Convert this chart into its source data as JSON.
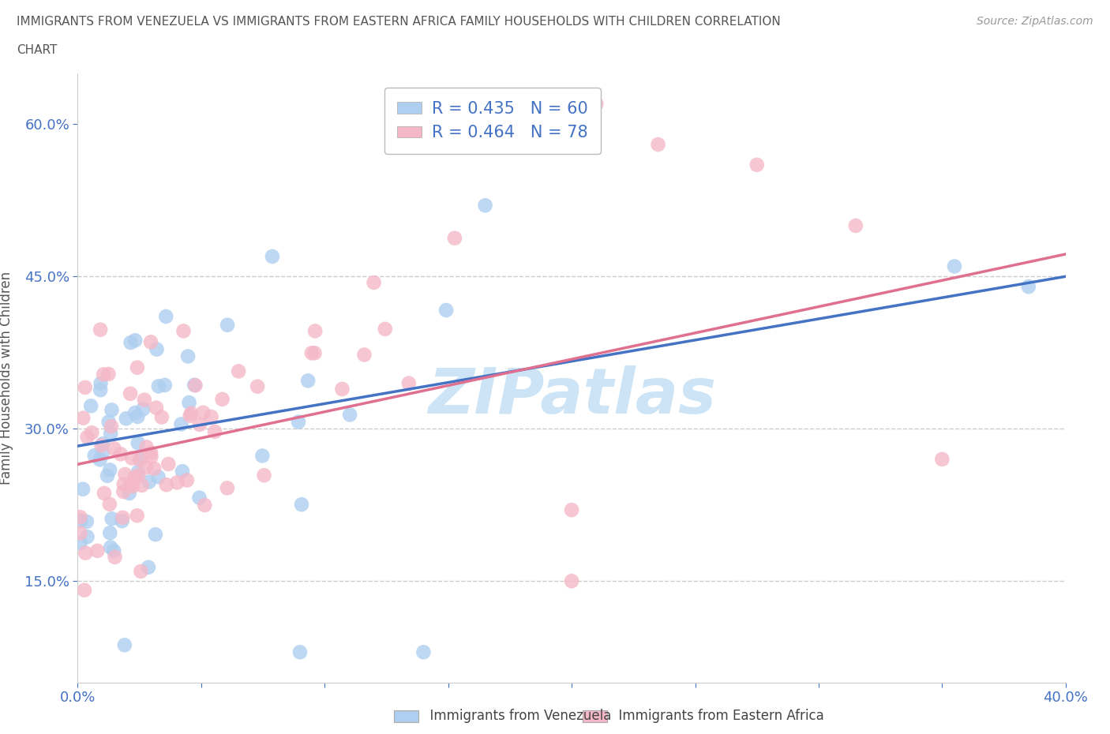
{
  "title_line1": "IMMIGRANTS FROM VENEZUELA VS IMMIGRANTS FROM EASTERN AFRICA FAMILY HOUSEHOLDS WITH CHILDREN CORRELATION",
  "title_line2": "CHART",
  "source": "Source: ZipAtlas.com",
  "ylabel": "Family Households with Children",
  "R1": 0.435,
  "N1": 60,
  "R2": 0.464,
  "N2": 78,
  "color1": "#aecff0",
  "color2": "#f5b8c8",
  "trendline1_color": "#4472c4",
  "trendline2_color": "#e07090",
  "watermark_color": "#cce4f5",
  "xlim": [
    0.0,
    0.4
  ],
  "ylim": [
    0.05,
    0.65
  ],
  "x_ticks": [
    0.0,
    0.05,
    0.1,
    0.15,
    0.2,
    0.25,
    0.3,
    0.35,
    0.4
  ],
  "y_ticks": [
    0.15,
    0.3,
    0.45,
    0.6
  ],
  "hline_y": 0.45,
  "hline2_y": 0.3,
  "hline3_y": 0.15,
  "background_color": "#ffffff",
  "title_color": "#555555",
  "source_color": "#999999",
  "axis_label_color": "#555555",
  "tick_color": "#4472c4",
  "legend_label1": "R = 0.435   N = 60",
  "legend_label2": "R = 0.464   N = 78",
  "bottom_label1": "Immigrants from Venezuela",
  "bottom_label2": "Immigrants from Eastern Africa"
}
